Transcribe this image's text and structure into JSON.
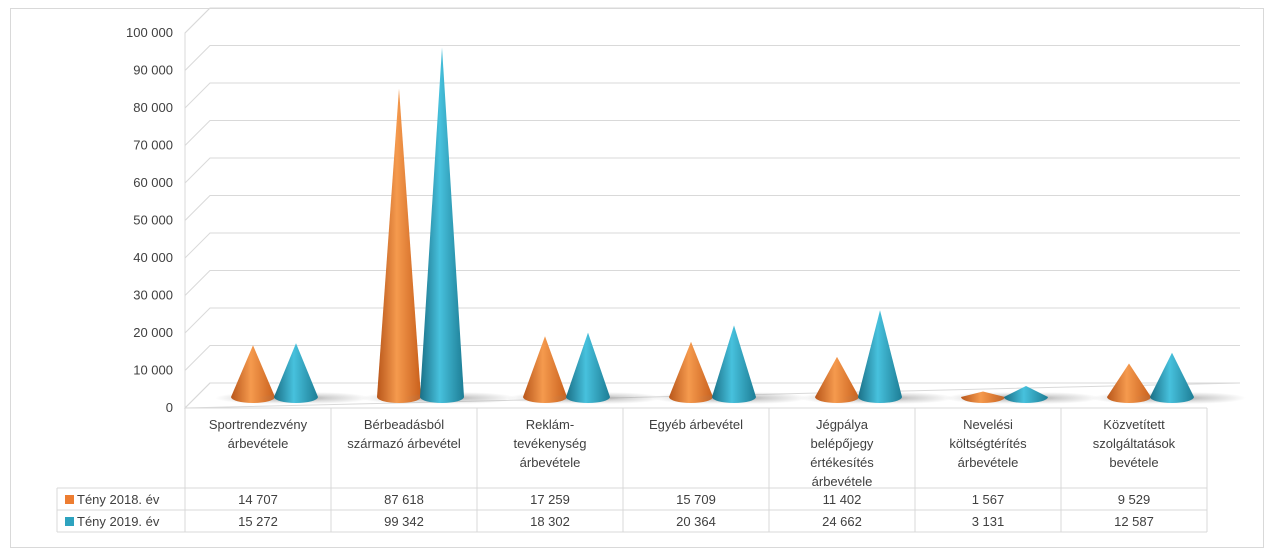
{
  "chart_data": {
    "type": "bar",
    "style": "3d-cone",
    "categories": [
      [
        "Sportrendezvény",
        "árbevétele"
      ],
      [
        "Bérbeadásból",
        "származó árbevétel"
      ],
      [
        "Reklám-",
        "tevékenység",
        "árbevétele"
      ],
      [
        "Egyéb árbevétel"
      ],
      [
        "Jégpálya",
        "belépőjegy",
        "értékesítés",
        "árbevétele"
      ],
      [
        "Nevelési",
        "költségtérítés",
        "árbevétele"
      ],
      [
        "Közvetített",
        "szolgáltatások",
        "bevétele"
      ]
    ],
    "series": [
      {
        "name": "Tény 2018. év",
        "color": "#ed7d31",
        "values": [
          14707,
          87618,
          17259,
          15709,
          11402,
          1567,
          9529
        ],
        "labels": [
          "14 707",
          "87 618",
          "17 259",
          "15 709",
          "11 402",
          "1 567",
          "9 529"
        ]
      },
      {
        "name": "Tény 2019. év",
        "color": "#2ea3bf",
        "values": [
          15272,
          99342,
          18302,
          20364,
          24662,
          3131,
          12587
        ],
        "labels": [
          "15 272",
          "99 342",
          "18 302",
          "20 364",
          "24 662",
          "3 131",
          "12 587"
        ]
      }
    ],
    "ylim": [
      0,
      100000
    ],
    "yticks": [
      0,
      10000,
      20000,
      30000,
      40000,
      50000,
      60000,
      70000,
      80000,
      90000,
      100000
    ],
    "ytick_labels": [
      "0",
      "10 000",
      "20 000",
      "30 000",
      "40 000",
      "50 000",
      "60 000",
      "70 000",
      "80 000",
      "90 000",
      "100 000"
    ],
    "grid": true,
    "legend": "data-table"
  }
}
